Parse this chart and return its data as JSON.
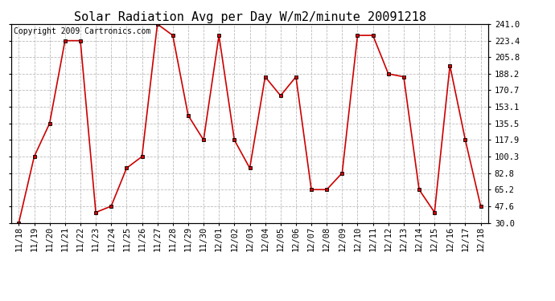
{
  "title": "Solar Radiation Avg per Day W/m2/minute 20091218",
  "copyright": "Copyright 2009 Cartronics.com",
  "labels": [
    "11/18",
    "11/19",
    "11/20",
    "11/21",
    "11/22",
    "11/23",
    "11/24",
    "11/25",
    "11/26",
    "11/27",
    "11/28",
    "11/29",
    "11/30",
    "12/01",
    "12/02",
    "12/03",
    "12/04",
    "12/05",
    "12/06",
    "12/07",
    "12/08",
    "12/09",
    "12/10",
    "12/11",
    "12/12",
    "12/13",
    "12/14",
    "12/15",
    "12/16",
    "12/17",
    "12/18"
  ],
  "values": [
    30.0,
    100.3,
    135.5,
    223.4,
    223.4,
    41.0,
    47.6,
    88.0,
    100.3,
    241.0,
    229.0,
    144.0,
    117.9,
    229.0,
    117.9,
    88.0,
    185.0,
    165.0,
    185.0,
    65.2,
    65.2,
    82.8,
    229.0,
    229.0,
    188.2,
    185.0,
    65.2,
    41.0,
    197.0,
    117.9,
    47.6
  ],
  "yticks": [
    30.0,
    47.6,
    65.2,
    82.8,
    100.3,
    117.9,
    135.5,
    153.1,
    170.7,
    188.2,
    205.8,
    223.4,
    241.0
  ],
  "line_color": "#cc0000",
  "marker_color": "#cc0000",
  "bg_color": "#ffffff",
  "plot_bg_color": "#ffffff",
  "grid_color": "#bbbbbb",
  "title_fontsize": 11,
  "copyright_fontsize": 7,
  "tick_fontsize": 7.5,
  "ylim_min": 30.0,
  "ylim_max": 241.0
}
